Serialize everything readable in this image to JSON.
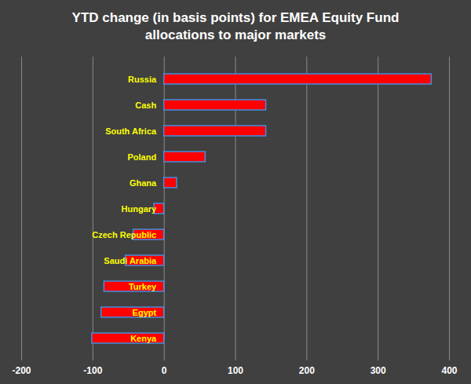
{
  "chart_data": {
    "type": "bar",
    "orientation": "horizontal",
    "title": "YTD change (in basis points) for EMEA Equity Fund allocations to major markets",
    "categories": [
      "Russia",
      "Cash",
      "South Africa",
      "Poland",
      "Ghana",
      "Hungary",
      "Czech Republic",
      "Saudi Arabia",
      "Turkey",
      "Egypt",
      "Kenya"
    ],
    "values": [
      375,
      143,
      143,
      58,
      18,
      -14,
      -43,
      -54,
      -84,
      -88,
      -101
    ],
    "color": "#ff0000",
    "xlim": [
      -200,
      400
    ],
    "xticks": [
      -200,
      -100,
      0,
      100,
      200,
      300,
      400
    ],
    "grid": true
  }
}
